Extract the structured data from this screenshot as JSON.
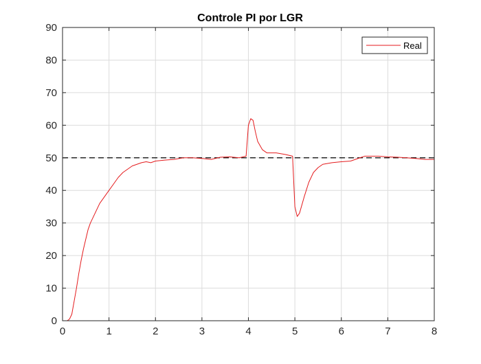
{
  "chart_data": {
    "type": "line",
    "title": "Controle PI por LGR",
    "xlabel": "",
    "ylabel": "",
    "xlim": [
      0,
      8
    ],
    "ylim": [
      0,
      90
    ],
    "xticks": [
      0,
      1,
      2,
      3,
      4,
      5,
      6,
      7,
      8
    ],
    "yticks": [
      0,
      10,
      20,
      30,
      40,
      50,
      60,
      70,
      80,
      90
    ],
    "xtick_labels": [
      "0",
      "1",
      "2",
      "3",
      "4",
      "5",
      "6",
      "7",
      "8"
    ],
    "ytick_labels": [
      "0",
      "10",
      "20",
      "30",
      "40",
      "50",
      "60",
      "70",
      "80",
      "90"
    ],
    "grid": true,
    "legend": {
      "position": "top-right",
      "entries": [
        "Real"
      ]
    },
    "reference_line": {
      "y": 50,
      "style": "dashed",
      "color": "#000000"
    },
    "series": [
      {
        "name": "Real",
        "color": "#e41a1c",
        "points": [
          [
            0.0,
            0.0
          ],
          [
            0.1,
            0.0
          ],
          [
            0.15,
            0.5
          ],
          [
            0.2,
            2.0
          ],
          [
            0.25,
            6.0
          ],
          [
            0.3,
            10.0
          ],
          [
            0.35,
            14.5
          ],
          [
            0.4,
            18.5
          ],
          [
            0.45,
            22.0
          ],
          [
            0.5,
            25.0
          ],
          [
            0.55,
            28.0
          ],
          [
            0.6,
            30.0
          ],
          [
            0.65,
            31.5
          ],
          [
            0.7,
            33.0
          ],
          [
            0.8,
            36.0
          ],
          [
            0.9,
            38.0
          ],
          [
            1.0,
            40.0
          ],
          [
            1.1,
            42.0
          ],
          [
            1.2,
            44.0
          ],
          [
            1.3,
            45.5
          ],
          [
            1.4,
            46.5
          ],
          [
            1.5,
            47.5
          ],
          [
            1.6,
            48.0
          ],
          [
            1.7,
            48.5
          ],
          [
            1.8,
            48.8
          ],
          [
            1.9,
            48.5
          ],
          [
            2.0,
            49.0
          ],
          [
            2.2,
            49.3
          ],
          [
            2.4,
            49.5
          ],
          [
            2.6,
            50.0
          ],
          [
            2.8,
            50.0
          ],
          [
            3.0,
            49.8
          ],
          [
            3.2,
            49.5
          ],
          [
            3.4,
            50.2
          ],
          [
            3.6,
            50.3
          ],
          [
            3.8,
            50.0
          ],
          [
            3.95,
            50.5
          ],
          [
            4.0,
            60.0
          ],
          [
            4.05,
            62.0
          ],
          [
            4.1,
            61.5
          ],
          [
            4.15,
            58.0
          ],
          [
            4.2,
            55.0
          ],
          [
            4.3,
            52.5
          ],
          [
            4.4,
            51.5
          ],
          [
            4.6,
            51.5
          ],
          [
            4.8,
            51.0
          ],
          [
            4.95,
            50.5
          ],
          [
            5.0,
            35.0
          ],
          [
            5.05,
            32.0
          ],
          [
            5.1,
            33.0
          ],
          [
            5.2,
            38.0
          ],
          [
            5.3,
            42.5
          ],
          [
            5.4,
            45.5
          ],
          [
            5.5,
            47.0
          ],
          [
            5.6,
            48.0
          ],
          [
            5.8,
            48.5
          ],
          [
            6.0,
            48.8
          ],
          [
            6.2,
            49.0
          ],
          [
            6.4,
            50.0
          ],
          [
            6.5,
            50.5
          ],
          [
            6.6,
            50.5
          ],
          [
            6.8,
            50.5
          ],
          [
            7.0,
            50.3
          ],
          [
            7.2,
            50.2
          ],
          [
            7.4,
            50.0
          ],
          [
            7.6,
            49.8
          ],
          [
            7.8,
            49.5
          ],
          [
            8.0,
            49.5
          ]
        ]
      }
    ]
  }
}
